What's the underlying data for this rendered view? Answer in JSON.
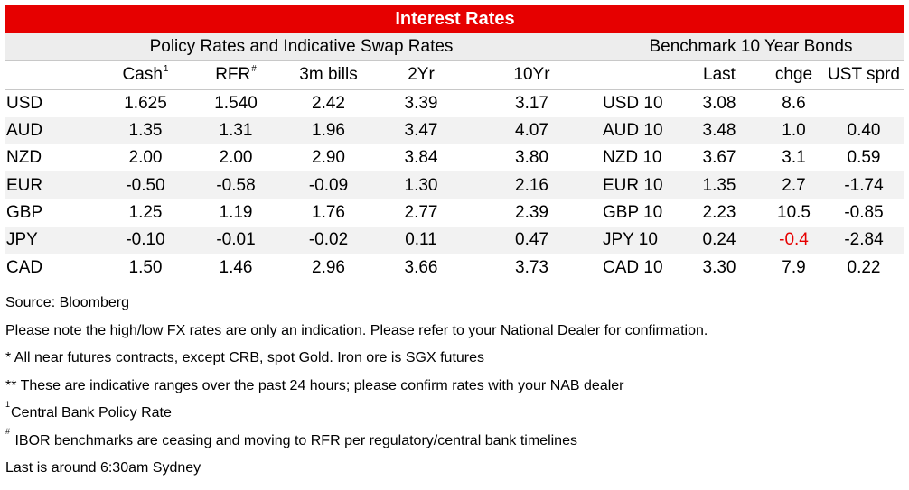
{
  "title": "Interest Rates",
  "sections": {
    "policy": "Policy Rates and Indicative Swap Rates",
    "bonds": "Benchmark 10 Year Bonds"
  },
  "columns": {
    "cash": "Cash",
    "cash_mark": "1",
    "rfr": "RFR",
    "rfr_mark": "#",
    "bills": "3m bills",
    "yr2": "2Yr",
    "yr10": "10Yr",
    "last": "Last",
    "chge": "chge",
    "sprd": "UST sprd"
  },
  "rows": [
    {
      "ccy": "USD",
      "cash": "1.625",
      "rfr": "1.540",
      "bills": "2.42",
      "yr2": "3.39",
      "yr10": "3.17",
      "bond": "USD 10",
      "last": "3.08",
      "chge": "8.6",
      "sprd": ""
    },
    {
      "ccy": "AUD",
      "cash": "1.35",
      "rfr": "1.31",
      "bills": "1.96",
      "yr2": "3.47",
      "yr10": "4.07",
      "bond": "AUD 10",
      "last": "3.48",
      "chge": "1.0",
      "sprd": "0.40"
    },
    {
      "ccy": "NZD",
      "cash": "2.00",
      "rfr": "2.00",
      "bills": "2.90",
      "yr2": "3.84",
      "yr10": "3.80",
      "bond": "NZD 10",
      "last": "3.67",
      "chge": "3.1",
      "sprd": "0.59"
    },
    {
      "ccy": "EUR",
      "cash": "-0.50",
      "rfr": "-0.58",
      "bills": "-0.09",
      "yr2": "1.30",
      "yr10": "2.16",
      "bond": "EUR 10",
      "last": "1.35",
      "chge": "2.7",
      "sprd": "-1.74"
    },
    {
      "ccy": "GBP",
      "cash": "1.25",
      "rfr": "1.19",
      "bills": "1.76",
      "yr2": "2.77",
      "yr10": "2.39",
      "bond": "GBP 10",
      "last": "2.23",
      "chge": "10.5",
      "sprd": "-0.85"
    },
    {
      "ccy": "JPY",
      "cash": "-0.10",
      "rfr": "-0.01",
      "bills": "-0.02",
      "yr2": "0.11",
      "yr10": "0.47",
      "bond": "JPY 10",
      "last": "0.24",
      "chge": "-0.4",
      "sprd": "-2.84"
    },
    {
      "ccy": "CAD",
      "cash": "1.50",
      "rfr": "1.46",
      "bills": "2.96",
      "yr2": "3.66",
      "yr10": "3.73",
      "bond": "CAD 10",
      "last": "3.30",
      "chge": "7.9",
      "sprd": "0.22"
    }
  ],
  "notes": {
    "source": "Source: Bloomberg",
    "fx_note": "Please note the high/low FX rates are only an indication. Please refer to your National Dealer for confirmation.",
    "futures_note": "* All near futures contracts, except CRB, spot Gold.  Iron ore is SGX futures",
    "ranges_note": "** These are indicative ranges over the past 24 hours; please confirm rates with your NAB dealer",
    "cb_mark": "1",
    "cb_note": "Central Bank Policy Rate",
    "ibor_mark": "#",
    "ibor_note": " IBOR benchmarks are ceasing and moving to RFR per regulatory/central bank timelines",
    "time_note": "Last is around 6:30am Sydney"
  },
  "colors": {
    "title_bg": "#e60000",
    "negative_change": "#e60000",
    "row_shade": "#f2f2f2",
    "section_bg": "#ededed"
  }
}
